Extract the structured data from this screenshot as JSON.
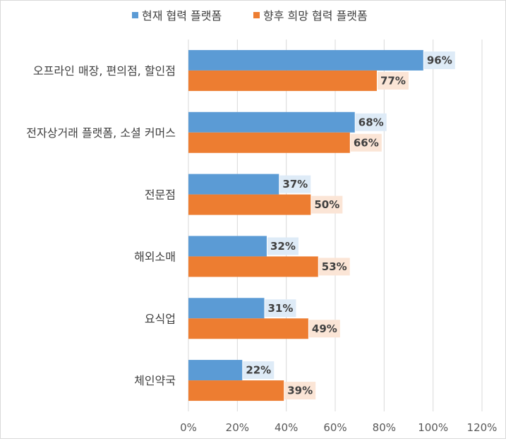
{
  "chart_data": {
    "type": "bar",
    "orientation": "horizontal",
    "categories": [
      "오프라인 매장, 편의점, 할인점",
      "전자상거래 플랫폼, 소셜 커머스",
      "전문점",
      "해외소매",
      "요식업",
      "체인약국"
    ],
    "series": [
      {
        "name": "현재 협력 플랫폼",
        "values": [
          96,
          68,
          37,
          32,
          31,
          22
        ],
        "labels": [
          "96%",
          "68%",
          "37%",
          "32%",
          "31%",
          "22%"
        ]
      },
      {
        "name": "향후 희망 협력 플랫폼",
        "values": [
          77,
          66,
          50,
          53,
          49,
          39
        ],
        "labels": [
          "77%",
          "66%",
          "50%",
          "53%",
          "49%",
          "39%"
        ]
      }
    ],
    "xlim": [
      0,
      120
    ],
    "xticks": [
      0,
      20,
      40,
      60,
      80,
      100,
      120
    ],
    "xtick_labels": [
      "0%",
      "20%",
      "40%",
      "60%",
      "80%",
      "100%",
      "120%"
    ],
    "grid": "vertical",
    "legend_position": "top",
    "colors": {
      "series": [
        "#5b9bd5",
        "#ed7d31"
      ],
      "label_bg": [
        "#deebf7",
        "#fbe5d6"
      ],
      "grid": "#d9d9d9"
    }
  }
}
